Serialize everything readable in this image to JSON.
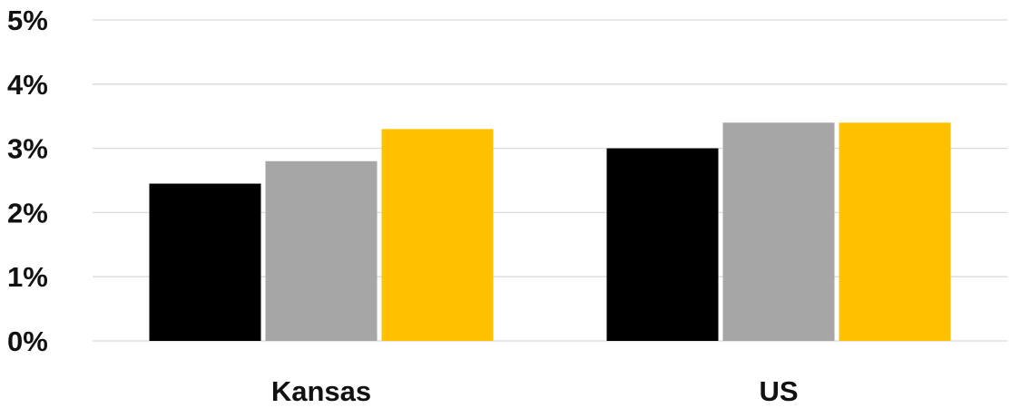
{
  "chart_data": {
    "type": "bar",
    "title": "",
    "xlabel": "",
    "ylabel": "",
    "categories": [
      "Kansas",
      "US"
    ],
    "series": [
      {
        "color": "#000000",
        "values": [
          2.45,
          3.0
        ]
      },
      {
        "color": "#a6a6a6",
        "values": [
          2.8,
          3.4
        ]
      },
      {
        "color": "#ffc000",
        "values": [
          3.3,
          3.4
        ]
      }
    ],
    "ylim": [
      0,
      5
    ],
    "y_ticks": [
      0,
      1,
      2,
      3,
      4,
      5
    ],
    "y_tick_labels": [
      "0%",
      "1%",
      "2%",
      "3%",
      "4%",
      "5%"
    ],
    "grid": true,
    "legend": "none"
  }
}
